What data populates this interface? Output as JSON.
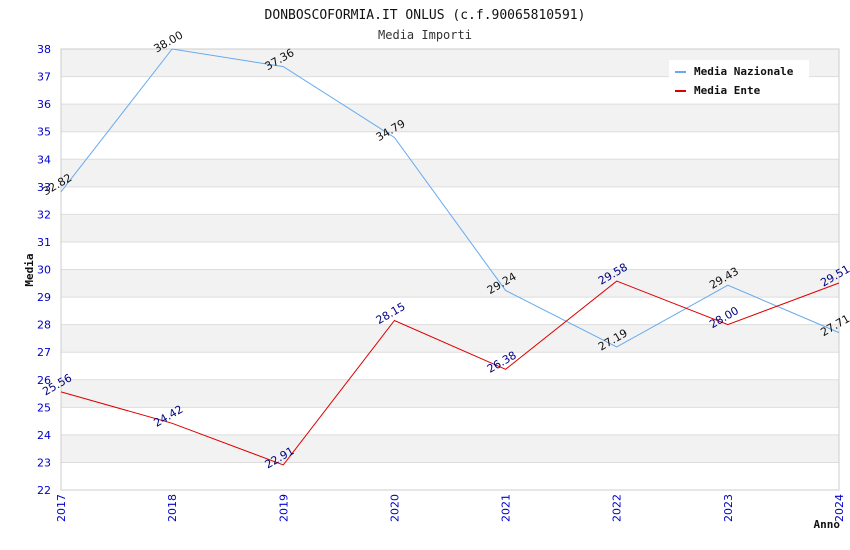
{
  "chart_data": {
    "type": "line",
    "title": "DONBOSCOFORMIA.IT ONLUS (c.f.90065810591)",
    "subtitle": "Media Importi",
    "xlabel": "Anno",
    "ylabel": "Media",
    "categories": [
      "2017",
      "2018",
      "2019",
      "2020",
      "2021",
      "2022",
      "2023",
      "2024"
    ],
    "y_ticks": [
      "22",
      "23",
      "24",
      "25",
      "26",
      "27",
      "28",
      "29",
      "30",
      "31",
      "32",
      "33",
      "34",
      "35",
      "36",
      "37",
      "38"
    ],
    "ylim": [
      22,
      38
    ],
    "grid": true,
    "legend_position": "top-right",
    "series": [
      {
        "name": "Media Nazionale",
        "color": "#66aaee",
        "values": [
          32.82,
          38.0,
          37.36,
          34.79,
          29.24,
          27.19,
          29.43,
          27.71
        ],
        "labels": [
          "32.82",
          "38.00",
          "37.36",
          "34.79",
          "29.24",
          "27.19",
          "29.43",
          "27.71"
        ]
      },
      {
        "name": "Media Ente",
        "color": "#dd0000",
        "values": [
          25.56,
          24.42,
          22.91,
          28.15,
          26.38,
          29.58,
          28.0,
          29.51
        ],
        "labels": [
          "25.56",
          "24.42",
          "22.91",
          "28.15",
          "26.38",
          "29.58",
          "28.00",
          "29.51"
        ]
      }
    ]
  }
}
